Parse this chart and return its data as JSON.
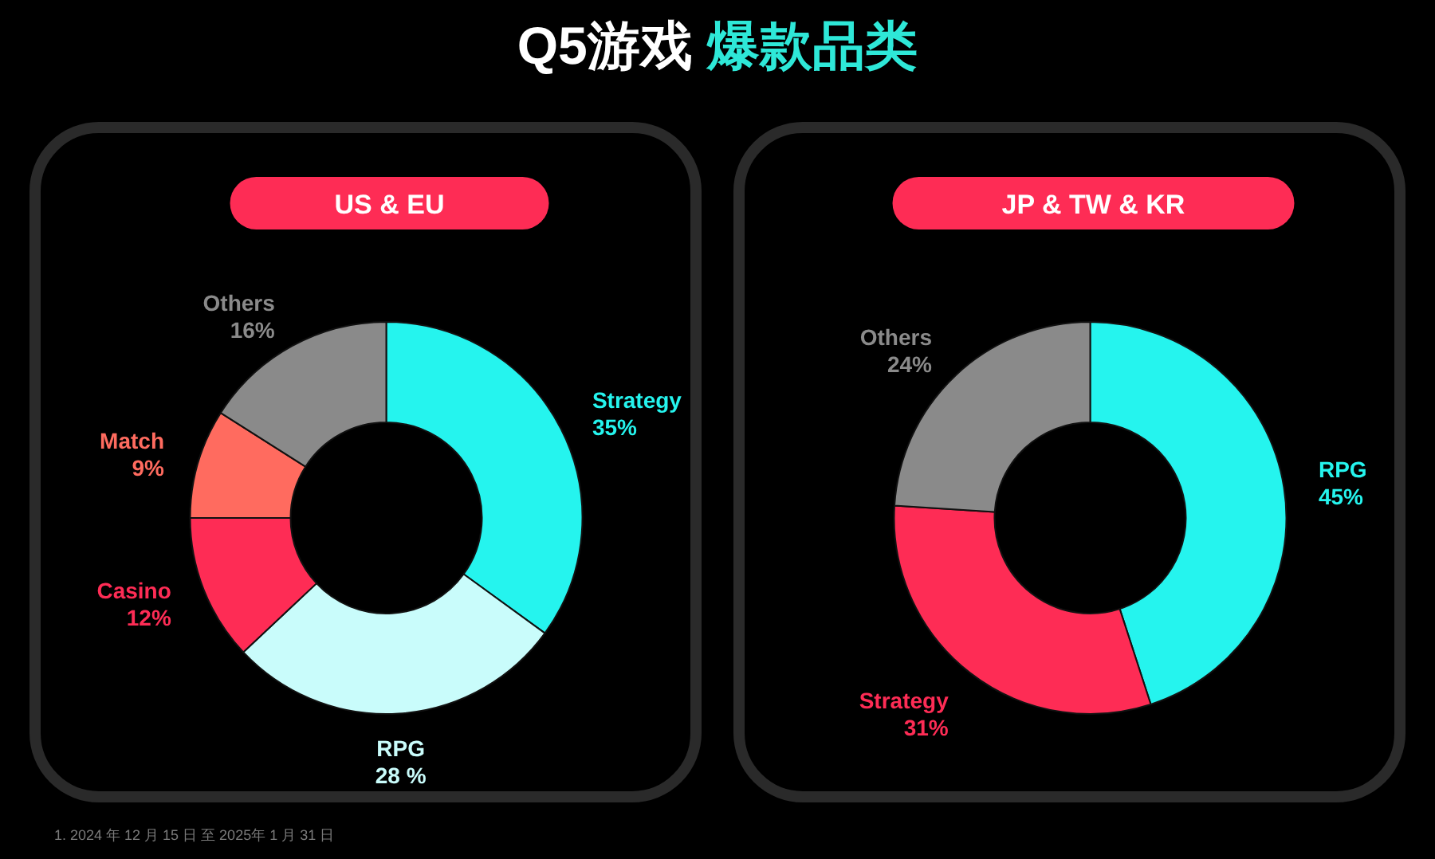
{
  "chart_data": [
    {
      "type": "other",
      "title": "Q5游戏 爆款品类",
      "annotations": [
        "1. 2024 年 12 月 15 日 至 2025年 1 月 31 日"
      ]
    },
    {
      "type": "donut",
      "title": "US & EU",
      "categories": [
        "Strategy",
        "RPG",
        "Casino",
        "Match",
        "Others"
      ],
      "values": [
        35,
        28,
        12,
        9,
        16
      ],
      "colors": [
        "#25f4ee",
        "#c9fcfb",
        "#fe2c55",
        "#ff6b5f",
        "#8a8a8a"
      ],
      "value_labels": [
        "35%",
        "28 %",
        "12%",
        "9%",
        "16%"
      ]
    },
    {
      "type": "donut",
      "title": "JP & TW & KR",
      "categories": [
        "RPG",
        "Strategy",
        "Others"
      ],
      "values": [
        45,
        31,
        24
      ],
      "colors": [
        "#25f4ee",
        "#fe2c55",
        "#8a8a8a"
      ],
      "value_labels": [
        "45%",
        "31%",
        "24%"
      ]
    }
  ]
}
